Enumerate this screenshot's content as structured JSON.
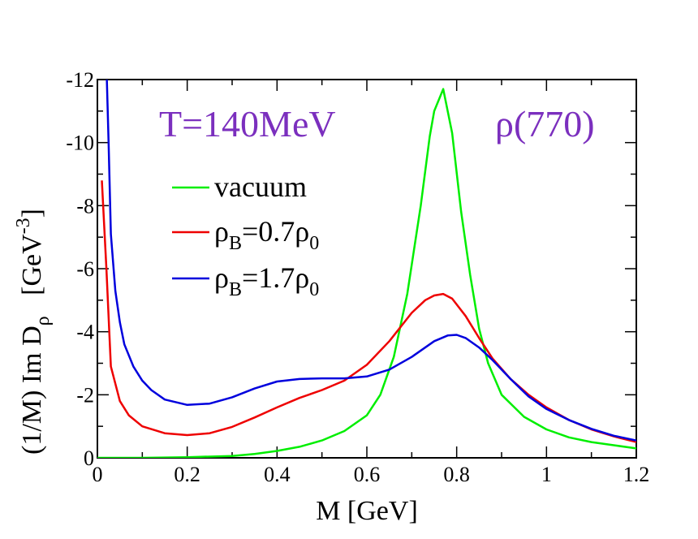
{
  "chart_data": {
    "type": "line",
    "xlabel": "M [GeV]",
    "ylabel_main": "(1/M)  Im D",
    "ylabel_sub": "ρ",
    "ylabel_unit_prefix": "[GeV",
    "ylabel_unit_sup": "-3",
    "ylabel_unit_suffix": "]",
    "xlim": [
      0,
      1.2
    ],
    "ylim": [
      0,
      -12
    ],
    "x_ticks": [
      "0",
      "0.2",
      "0.4",
      "0.6",
      "0.8",
      "1",
      "1.2"
    ],
    "x_tick_values": [
      0,
      0.2,
      0.4,
      0.6,
      0.8,
      1.0,
      1.2
    ],
    "y_ticks": [
      "0",
      "-2",
      "-4",
      "-6",
      "-8",
      "-10",
      "-12"
    ],
    "y_tick_values": [
      0,
      -2,
      -4,
      -6,
      -8,
      -10,
      -12
    ],
    "annotations": {
      "temperature": "T=140MeV",
      "particle": "ρ(770)"
    },
    "colors": {
      "vacuum": "#00ee00",
      "rho07": "#ee0000",
      "rho17": "#0000dd",
      "annotation": "#7b2fbe"
    },
    "series": [
      {
        "name": "vacuum",
        "legend": {
          "main": "vacuum"
        },
        "color": "#00ee00",
        "x": [
          0,
          0.1,
          0.2,
          0.3,
          0.35,
          0.4,
          0.45,
          0.5,
          0.55,
          0.6,
          0.63,
          0.66,
          0.69,
          0.72,
          0.74,
          0.75,
          0.77,
          0.79,
          0.81,
          0.83,
          0.85,
          0.87,
          0.9,
          0.95,
          1.0,
          1.05,
          1.1,
          1.15,
          1.2
        ],
        "y": [
          0,
          0,
          -0.02,
          -0.06,
          -0.12,
          -0.22,
          -0.35,
          -0.55,
          -0.85,
          -1.35,
          -2.0,
          -3.2,
          -5.2,
          -8.0,
          -10.2,
          -11.0,
          -11.7,
          -10.3,
          -7.8,
          -5.8,
          -4.1,
          -3.0,
          -2.0,
          -1.3,
          -0.9,
          -0.65,
          -0.5,
          -0.4,
          -0.3
        ]
      },
      {
        "name": "ρ_B=0.7ρ_0",
        "legend": {
          "pre": "ρ",
          "sub1": "B",
          "mid": "=0.7ρ",
          "sub2": "0"
        },
        "color": "#ee0000",
        "x": [
          0.01,
          0.02,
          0.03,
          0.05,
          0.07,
          0.1,
          0.15,
          0.2,
          0.25,
          0.3,
          0.35,
          0.4,
          0.45,
          0.5,
          0.55,
          0.6,
          0.65,
          0.7,
          0.73,
          0.75,
          0.77,
          0.79,
          0.82,
          0.85,
          0.88,
          0.92,
          0.96,
          1.0,
          1.05,
          1.1,
          1.15,
          1.2
        ],
        "y": [
          -8.8,
          -6.0,
          -2.9,
          -1.8,
          -1.35,
          -1.0,
          -0.78,
          -0.72,
          -0.78,
          -0.98,
          -1.28,
          -1.6,
          -1.9,
          -2.15,
          -2.45,
          -2.95,
          -3.7,
          -4.6,
          -5.0,
          -5.15,
          -5.2,
          -5.05,
          -4.5,
          -3.8,
          -3.15,
          -2.5,
          -2.0,
          -1.6,
          -1.2,
          -0.9,
          -0.68,
          -0.5
        ]
      },
      {
        "name": "ρ_B=1.7ρ_0",
        "legend": {
          "pre": "ρ",
          "sub1": "B",
          "mid": "=1.7ρ",
          "sub2": "0"
        },
        "color": "#0000dd",
        "x": [
          0.02,
          0.025,
          0.03,
          0.04,
          0.05,
          0.06,
          0.08,
          0.1,
          0.12,
          0.15,
          0.2,
          0.25,
          0.3,
          0.35,
          0.4,
          0.45,
          0.5,
          0.55,
          0.6,
          0.65,
          0.7,
          0.75,
          0.78,
          0.8,
          0.82,
          0.85,
          0.88,
          0.92,
          0.96,
          1.0,
          1.05,
          1.1,
          1.15,
          1.2
        ],
        "y": [
          -12.5,
          -10.0,
          -7.1,
          -5.3,
          -4.3,
          -3.6,
          -2.9,
          -2.45,
          -2.15,
          -1.85,
          -1.68,
          -1.72,
          -1.92,
          -2.2,
          -2.42,
          -2.5,
          -2.52,
          -2.52,
          -2.58,
          -2.8,
          -3.2,
          -3.7,
          -3.88,
          -3.9,
          -3.8,
          -3.5,
          -3.1,
          -2.5,
          -1.95,
          -1.55,
          -1.2,
          -0.92,
          -0.7,
          -0.55
        ]
      }
    ]
  }
}
